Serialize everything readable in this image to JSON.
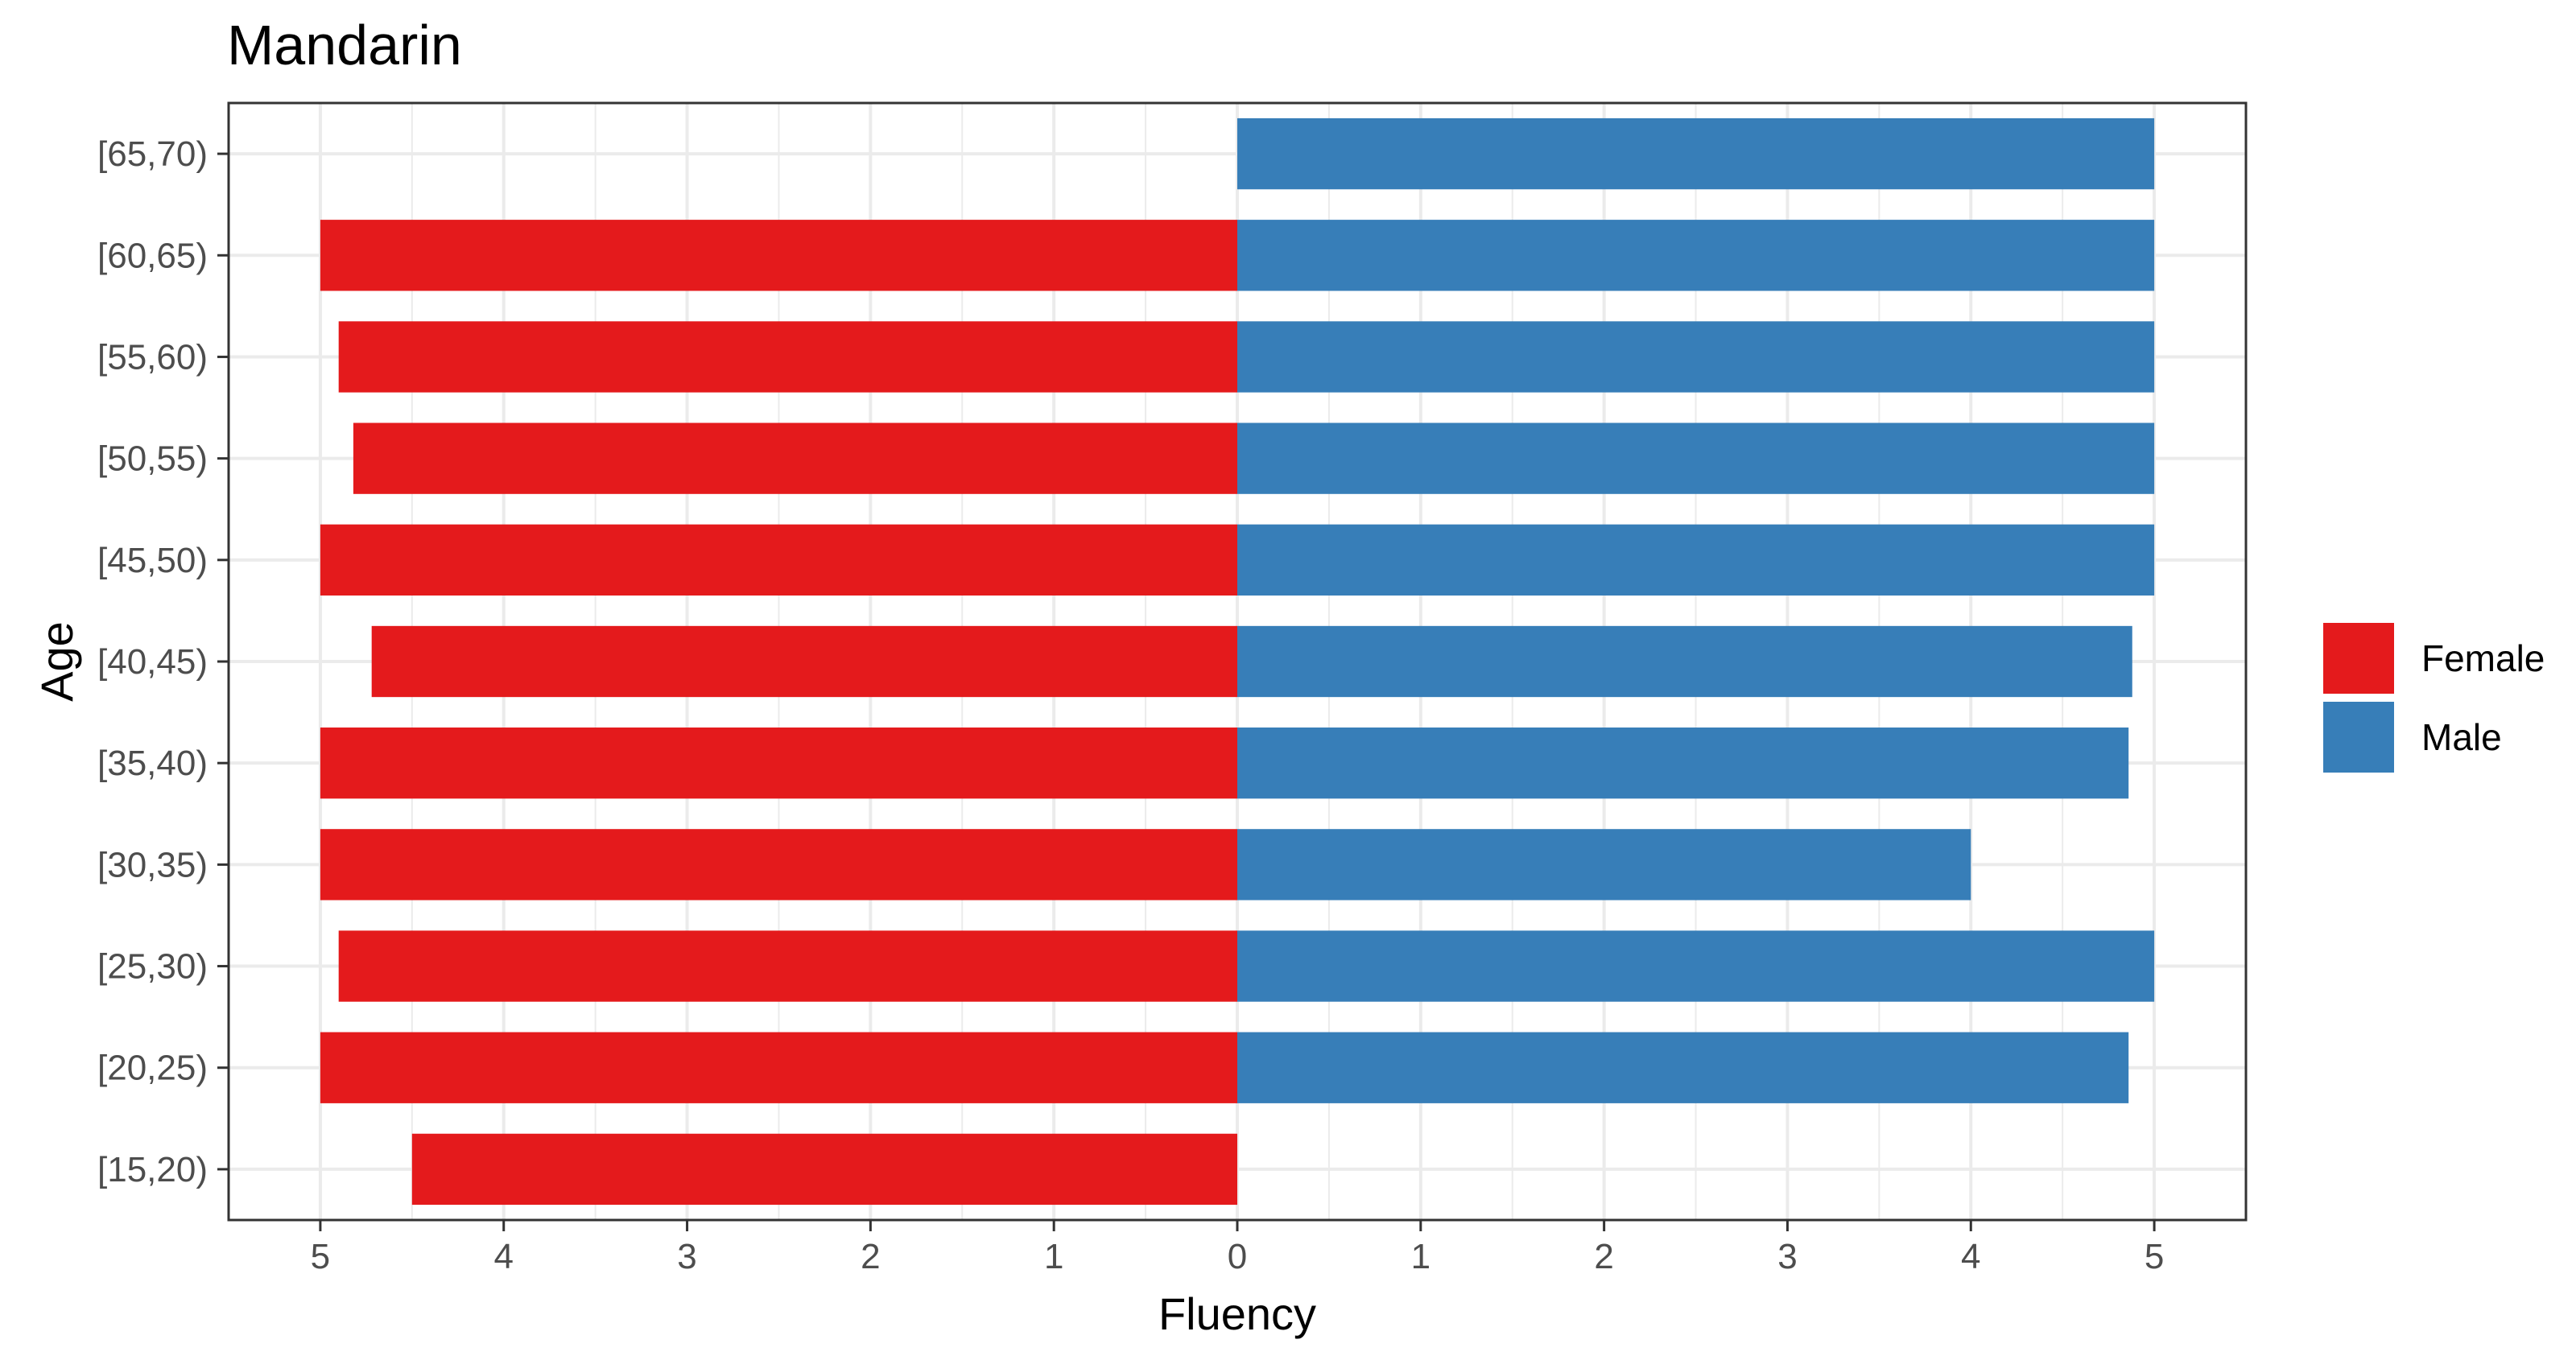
{
  "chart_data": {
    "type": "bar",
    "orientation": "horizontal",
    "title": "Mandarin",
    "xlabel": "Fluency",
    "ylabel": "Age",
    "xlim": [
      -5.5,
      5.5
    ],
    "x_ticks": [
      -5,
      -4,
      -3,
      -2,
      -1,
      0,
      1,
      2,
      3,
      4,
      5
    ],
    "x_tick_labels": [
      "5",
      "4",
      "3",
      "2",
      "1",
      "0",
      "1",
      "2",
      "3",
      "4",
      "5"
    ],
    "categories": [
      "[15,20)",
      "[20,25)",
      "[25,30)",
      "[30,35)",
      "[35,40)",
      "[40,45)",
      "[45,50)",
      "[50,55)",
      "[55,60)",
      "[60,65)",
      "[65,70)"
    ],
    "series": [
      {
        "name": "Female",
        "color": "#e41a1c",
        "values": [
          4.5,
          5.0,
          4.9,
          5.0,
          5.0,
          4.72,
          5.0,
          4.82,
          4.9,
          5.0,
          null
        ]
      },
      {
        "name": "Male",
        "color": "#377eb8",
        "values": [
          null,
          4.86,
          5.0,
          4.0,
          4.86,
          4.88,
          5.0,
          5.0,
          5.0,
          5.0,
          5.0
        ]
      }
    ],
    "grid": true,
    "legend": "right"
  }
}
